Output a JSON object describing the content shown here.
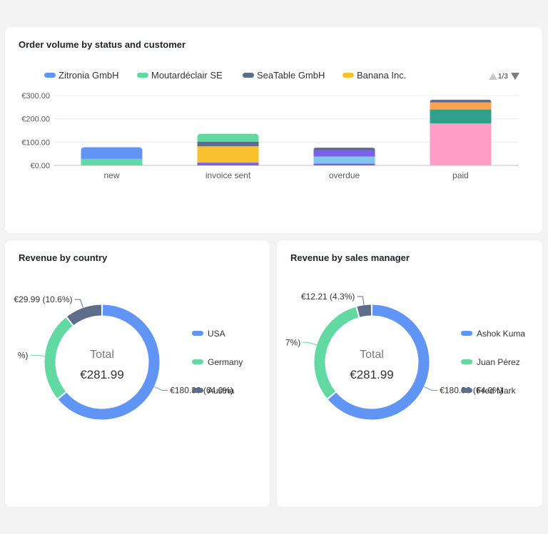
{
  "charts": {
    "order_volume": {
      "title": "Order volume by status and customer",
      "pager": "1/3"
    },
    "revenue_country": {
      "title": "Revenue by country",
      "center_label": "Total",
      "center_value": "€281.99"
    },
    "revenue_manager": {
      "title": "Revenue by sales manager",
      "center_label": "Total",
      "center_value": "€281.99"
    }
  },
  "colors": {
    "blue": "#6195f5",
    "green": "#62d8a3",
    "slate": "#5e6e8a",
    "yellow": "#f8c12d",
    "purple": "#7a62e6",
    "lightblue": "#7ec8ee",
    "pink": "#ff9fc8",
    "teal": "#30a08c",
    "orange": "#f9a454",
    "axis": "#bfbfbf",
    "grid": "#ececec",
    "text": "#5a5a5a"
  },
  "chart_data": [
    {
      "type": "bar",
      "title": "Order volume by status and customer",
      "stacked": true,
      "categories": [
        "new",
        "invoice sent",
        "overdue",
        "paid"
      ],
      "y_ticks": [
        "€0.00",
        "€100.00",
        "€200.00",
        "€300.00"
      ],
      "ylim": [
        0,
        300
      ],
      "legend_placement": "top",
      "legend": [
        {
          "name": "Zitronia GmbH",
          "color": "#6195f5"
        },
        {
          "name": "Moutardéclair SE",
          "color": "#62d8a3"
        },
        {
          "name": "SeaTable GmbH",
          "color": "#5e6e8a"
        },
        {
          "name": "Banana Inc.",
          "color": "#f8c12d"
        }
      ],
      "stacks": [
        {
          "category": "new",
          "segments": [
            {
              "value": 28,
              "color": "#62d8a3"
            },
            {
              "value": 50,
              "color": "#6195f5"
            }
          ]
        },
        {
          "category": "invoice sent",
          "segments": [
            {
              "value": 12,
              "color": "#7a62e6"
            },
            {
              "value": 70,
              "color": "#f8c12d"
            },
            {
              "value": 20,
              "color": "#5e6e8a"
            },
            {
              "value": 34,
              "color": "#62d8a3"
            }
          ]
        },
        {
          "category": "overdue",
          "segments": [
            {
              "value": 8,
              "color": "#7a62e6"
            },
            {
              "value": 30,
              "color": "#7ec8ee"
            },
            {
              "value": 28,
              "color": "#7a62e6"
            },
            {
              "value": 10,
              "color": "#5e6e8a"
            }
          ]
        },
        {
          "category": "paid",
          "segments": [
            {
              "value": 180,
              "color": "#ff9fc8"
            },
            {
              "value": 60,
              "color": "#30a08c"
            },
            {
              "value": 30,
              "color": "#f9a454"
            },
            {
              "value": 12,
              "color": "#5e6e8a"
            }
          ]
        }
      ]
    },
    {
      "type": "pie",
      "title": "Revenue by country",
      "total": "€281.99",
      "slices": [
        {
          "name": "USA",
          "value": 180.36,
          "color": "#6195f5"
        },
        {
          "name": "Germany",
          "value": 71.64,
          "color": "#62d8a3"
        },
        {
          "name": "Austria",
          "value": 29.99,
          "color": "#5e6e8a"
        }
      ],
      "slice_labels": [
        "€180.36 (64.0%)",
        "%)",
        "€29.99 (10.6%)"
      ],
      "legend_placement": "right"
    },
    {
      "type": "pie",
      "title": "Revenue by sales manager",
      "total": "€281.99",
      "slices": [
        {
          "name": "Ashok Kuma",
          "value": 180.36,
          "color": "#6195f5"
        },
        {
          "name": "Juan Pérez",
          "value": 89.42,
          "color": "#62d8a3"
        },
        {
          "name": "Fred Mark",
          "value": 12.21,
          "color": "#5e6e8a"
        }
      ],
      "slice_labels": [
        "€180.36 (64.0%)",
        "7%)",
        "€12.21 (4.3%)"
      ],
      "legend_placement": "right"
    }
  ]
}
